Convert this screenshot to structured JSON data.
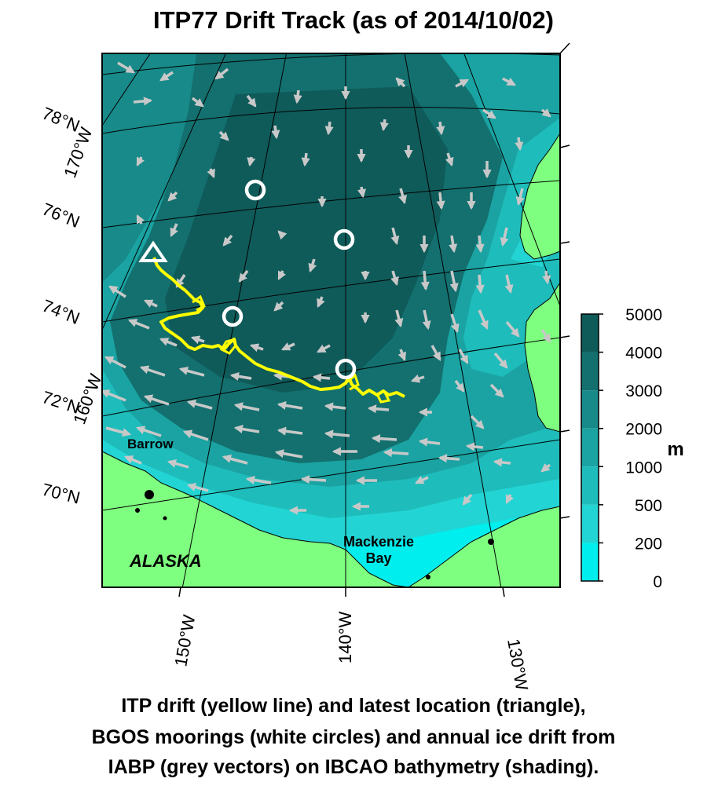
{
  "title": "ITP77 Drift Track (as of 2014/10/02)",
  "caption": [
    "ITP drift (yellow line) and latest location (triangle),",
    "BGOS moorings (white circles) and annual ice drift from",
    "IABP (grey vectors) on IBCAO bathymetry (shading)."
  ],
  "latitude_labels": [
    "78°N",
    "76°N",
    "74°N",
    "72°N",
    "70°N"
  ],
  "longitude_labels_left": [
    "170°W",
    "160°W"
  ],
  "longitude_labels_bottom": [
    "150°W",
    "140°W",
    "130°W"
  ],
  "place_labels": {
    "barrow": "Barrow",
    "alaska": "ALASKA",
    "mackenzie_line1": "Mackenzie",
    "mackenzie_line2": "Bay"
  },
  "colorbar": {
    "unit": "m",
    "ticks": [
      "5000",
      "4000",
      "3000",
      "2000",
      "1000",
      "500",
      "200",
      "0"
    ],
    "colors": [
      "#0f5b5a",
      "#13706f",
      "#178a89",
      "#1aa3a2",
      "#1ebcbb",
      "#22d4d3",
      "#00eeee"
    ]
  },
  "legend_colors": {
    "drift_track": "#ffff00",
    "latest_location": "#ffffff",
    "moorings": "#ffffff",
    "ice_vectors": "#c8c8c8",
    "land": "#7fff7f"
  }
}
